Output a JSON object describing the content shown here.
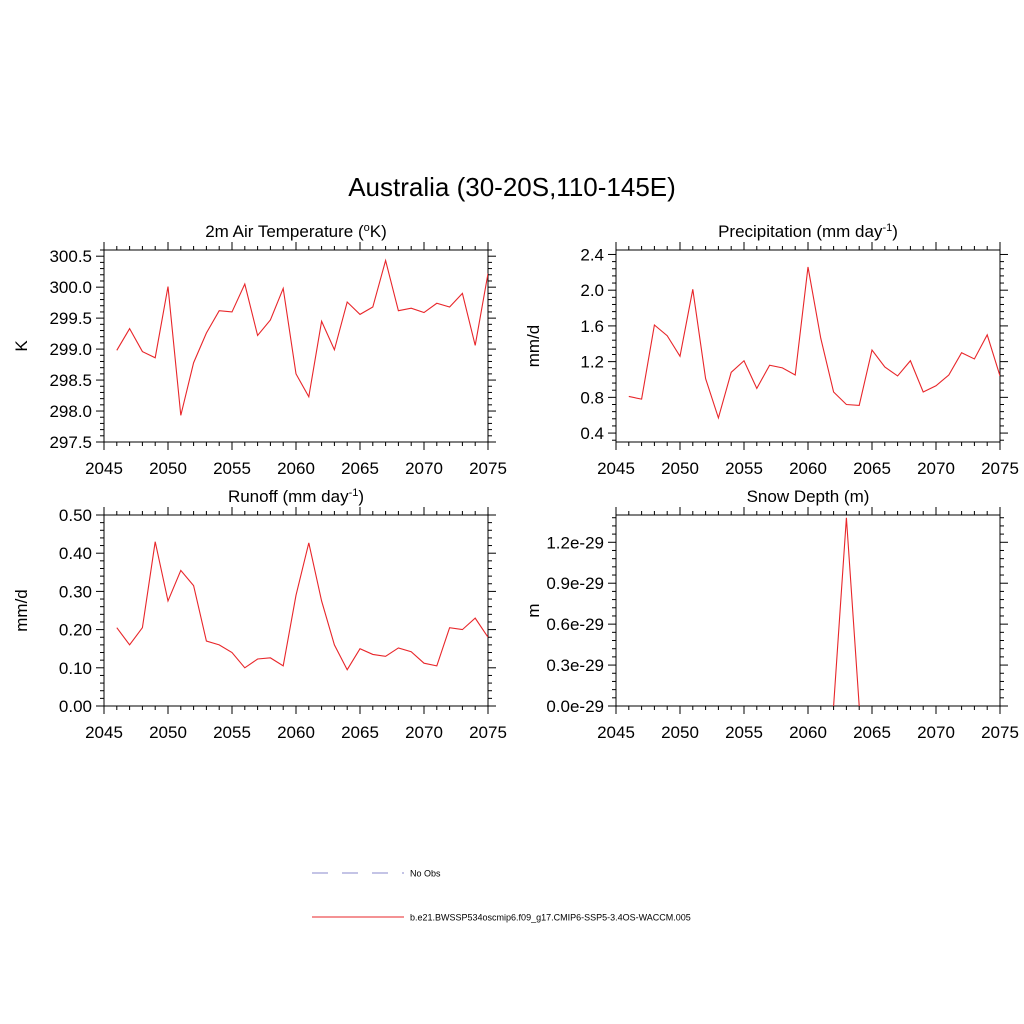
{
  "main_title": "Australia (30-20S,110-145E)",
  "colors": {
    "model_line": "#e8262a",
    "obs_line": "#a0a0d8",
    "axis": "#000000"
  },
  "legend": {
    "obs_label": "No Obs",
    "model_label": "b.e21.BWSSP534oscmip6.f09_g17.CMIP6-SSP5-3.4OS-WACCM.005"
  },
  "chart_data": [
    {
      "type": "line",
      "title_main": "2m Air Temperature (",
      "title_sup_pre": "o",
      "title_after": "K)",
      "title_sup_post": "",
      "title_end": "",
      "ylabel": "K",
      "xlim": [
        2045,
        2075
      ],
      "ylim": [
        297.5,
        300.6
      ],
      "x_ticks": [
        2045,
        2050,
        2055,
        2060,
        2065,
        2070,
        2075
      ],
      "x_tick_labels": [
        "2045",
        "2050",
        "2055",
        "2060",
        "2065",
        "2070",
        "2075"
      ],
      "y_ticks": [
        297.5,
        298.0,
        298.5,
        299.0,
        299.5,
        300.0,
        300.5
      ],
      "y_tick_labels": [
        "297.5",
        "298.0",
        "298.5",
        "299.0",
        "299.5",
        "300.0",
        "300.5"
      ],
      "series": [
        {
          "x": [
            2046,
            2047,
            2048,
            2049,
            2050,
            2051,
            2052,
            2053,
            2054,
            2055,
            2056,
            2057,
            2058,
            2059,
            2060,
            2061,
            2062,
            2063,
            2064,
            2065,
            2066,
            2067,
            2068,
            2069,
            2070,
            2071,
            2072,
            2073,
            2074,
            2075
          ],
          "values": [
            298.98,
            299.33,
            298.96,
            298.86,
            300.01,
            297.93,
            298.78,
            299.26,
            299.62,
            299.6,
            300.05,
            299.22,
            299.47,
            299.98,
            298.6,
            298.23,
            299.45,
            298.99,
            299.76,
            299.56,
            299.68,
            300.43,
            299.62,
            299.66,
            299.59,
            299.74,
            299.68,
            299.9,
            299.06,
            300.22
          ]
        }
      ]
    },
    {
      "type": "line",
      "title_main": "Precipitation (mm day",
      "title_sup_pre": "",
      "title_after": "",
      "title_sup_post": "-1",
      "title_end": ")",
      "ylabel": "mm/d",
      "xlim": [
        2045,
        2075
      ],
      "ylim": [
        0.3,
        2.45
      ],
      "x_ticks": [
        2045,
        2050,
        2055,
        2060,
        2065,
        2070,
        2075
      ],
      "x_tick_labels": [
        "2045",
        "2050",
        "2055",
        "2060",
        "2065",
        "2070",
        "2075"
      ],
      "y_ticks": [
        0.4,
        0.8,
        1.2,
        1.6,
        2.0,
        2.4
      ],
      "y_tick_labels": [
        "0.4",
        "0.8",
        "1.2",
        "1.6",
        "2.0",
        "2.4"
      ],
      "series": [
        {
          "x": [
            2046,
            2047,
            2048,
            2049,
            2050,
            2051,
            2052,
            2053,
            2054,
            2055,
            2056,
            2057,
            2058,
            2059,
            2060,
            2061,
            2062,
            2063,
            2064,
            2065,
            2066,
            2067,
            2068,
            2069,
            2070,
            2071,
            2072,
            2073,
            2074,
            2075
          ],
          "values": [
            0.81,
            0.78,
            1.61,
            1.49,
            1.26,
            2.01,
            1.01,
            0.57,
            1.08,
            1.21,
            0.9,
            1.16,
            1.13,
            1.05,
            2.26,
            1.46,
            0.86,
            0.72,
            0.71,
            1.33,
            1.14,
            1.04,
            1.21,
            0.86,
            0.93,
            1.05,
            1.3,
            1.23,
            1.5,
            1.04
          ]
        }
      ]
    },
    {
      "type": "line",
      "title_main": "Runoff (mm day",
      "title_sup_pre": "",
      "title_after": "",
      "title_sup_post": "-1",
      "title_end": ")",
      "ylabel": "mm/d",
      "xlim": [
        2045,
        2075
      ],
      "ylim": [
        0.0,
        0.5
      ],
      "x_ticks": [
        2045,
        2050,
        2055,
        2060,
        2065,
        2070,
        2075
      ],
      "x_tick_labels": [
        "2045",
        "2050",
        "2055",
        "2060",
        "2065",
        "2070",
        "2075"
      ],
      "y_ticks": [
        0.0,
        0.1,
        0.2,
        0.3,
        0.4,
        0.5
      ],
      "y_tick_labels": [
        "0.00",
        "0.10",
        "0.20",
        "0.30",
        "0.40",
        "0.50"
      ],
      "series": [
        {
          "x": [
            2046,
            2047,
            2048,
            2049,
            2050,
            2051,
            2052,
            2053,
            2054,
            2055,
            2056,
            2057,
            2058,
            2059,
            2060,
            2061,
            2062,
            2063,
            2064,
            2065,
            2066,
            2067,
            2068,
            2069,
            2070,
            2071,
            2072,
            2073,
            2074,
            2075
          ],
          "values": [
            0.205,
            0.16,
            0.205,
            0.43,
            0.275,
            0.355,
            0.315,
            0.17,
            0.16,
            0.14,
            0.1,
            0.123,
            0.126,
            0.105,
            0.29,
            0.427,
            0.275,
            0.16,
            0.095,
            0.15,
            0.135,
            0.13,
            0.152,
            0.142,
            0.112,
            0.105,
            0.205,
            0.2,
            0.23,
            0.18
          ]
        }
      ]
    },
    {
      "type": "line",
      "title_main": "Snow Depth (m)",
      "title_sup_pre": "",
      "title_after": "",
      "title_sup_post": "",
      "title_end": "",
      "ylabel": "m",
      "xlim": [
        2045,
        2075
      ],
      "ylim": [
        0.0,
        1.4e-29
      ],
      "x_ticks": [
        2045,
        2050,
        2055,
        2060,
        2065,
        2070,
        2075
      ],
      "x_tick_labels": [
        "2045",
        "2050",
        "2055",
        "2060",
        "2065",
        "2070",
        "2075"
      ],
      "y_ticks": [
        0.0,
        3e-30,
        6e-30,
        9e-30,
        1.2e-29
      ],
      "y_tick_labels": [
        "0.0e-29",
        "0.3e-29",
        "0.6e-29",
        "0.9e-29",
        "1.2e-29"
      ],
      "series": [
        {
          "x": [
            2062,
            2063,
            2064
          ],
          "values": [
            0.0,
            1.38e-29,
            0.0
          ]
        }
      ]
    }
  ]
}
